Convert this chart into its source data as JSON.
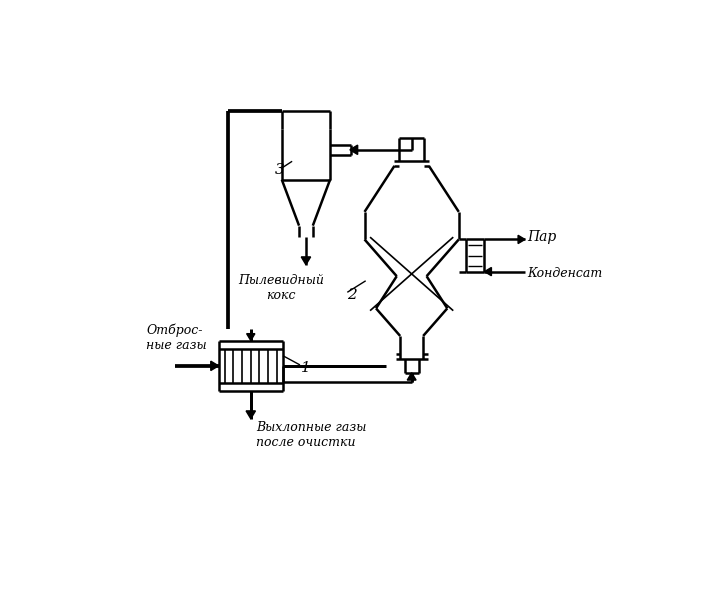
{
  "bg_color": "#ffffff",
  "line_color": "#000000",
  "figsize": [
    7.27,
    5.97
  ],
  "dpi": 100,
  "labels": {
    "label1": "1",
    "label2": "2",
    "label3": "3",
    "dust_coke": "Пылевидный\nкокс",
    "waste_gas": "Отброс-\nные газы",
    "exhaust_gas": "Выхлопные газы\nпосле очистки",
    "steam": "Пар",
    "condensate": "Конденсат"
  },
  "coord": {
    "xlim": [
      0,
      10
    ],
    "ylim": [
      0,
      10
    ]
  }
}
